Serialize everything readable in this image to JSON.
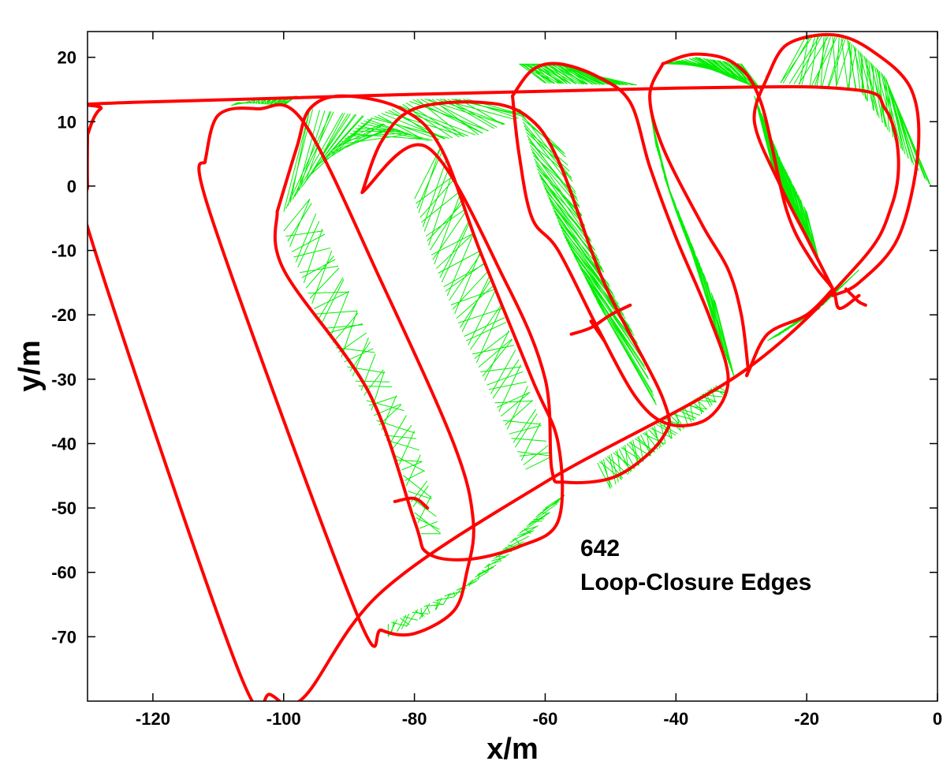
{
  "chart_data": {
    "type": "line",
    "title": "",
    "xlabel": "x/m",
    "ylabel": "y/m",
    "xlim": [
      -130,
      0
    ],
    "ylim": [
      -80,
      24
    ],
    "xticks": [
      -120,
      -100,
      -80,
      -60,
      -40,
      -20,
      0
    ],
    "yticks": [
      20,
      10,
      0,
      -10,
      -20,
      -30,
      -40,
      -50,
      -60,
      -70
    ],
    "grid": false,
    "annotation": {
      "count": "642",
      "label": "Loop-Closure Edges"
    },
    "colors": {
      "trajectory": "#ff0000",
      "loop_closure_edges": "#00ee00"
    },
    "series": [
      {
        "kind": "trajectory",
        "points": [
          [
            -130,
            8
          ],
          [
            -128,
            12
          ],
          [
            -123,
            13
          ],
          [
            -40,
            15.2
          ],
          [
            -13,
            15
          ],
          [
            -8,
            12
          ],
          [
            -6,
            5
          ],
          [
            -7,
            -3
          ],
          [
            -12,
            -12
          ],
          [
            -30,
            -29
          ],
          [
            -60,
            -46
          ],
          [
            -85,
            -63
          ],
          [
            -97,
            -79.5
          ],
          [
            -102,
            -79
          ],
          [
            -107,
            -75
          ],
          [
            -129.5,
            -8
          ],
          [
            -130,
            0
          ],
          [
            -130,
            8
          ]
        ]
      },
      {
        "kind": "trajectory",
        "points": [
          [
            -112,
            4
          ],
          [
            -110,
            11
          ],
          [
            -104,
            12
          ],
          [
            -97,
            10
          ],
          [
            -85,
            -15
          ],
          [
            -74,
            -40
          ],
          [
            -71,
            -52
          ],
          [
            -72,
            -60
          ],
          [
            -74,
            -66
          ],
          [
            -80,
            -69.5
          ],
          [
            -85,
            -69
          ],
          [
            -89,
            -66
          ],
          [
            -111,
            -5
          ],
          [
            -112,
            4
          ]
        ]
      },
      {
        "kind": "trajectory",
        "points": [
          [
            -101,
            -4
          ],
          [
            -98,
            6
          ],
          [
            -96,
            12
          ],
          [
            -91,
            14
          ],
          [
            -82,
            12
          ],
          [
            -76,
            6
          ],
          [
            -70,
            -10
          ],
          [
            -62,
            -30
          ],
          [
            -58,
            -40
          ],
          [
            -58,
            -52
          ],
          [
            -64,
            -56
          ],
          [
            -72,
            -58
          ],
          [
            -78,
            -57
          ],
          [
            -80,
            -52
          ],
          [
            -87,
            -32
          ],
          [
            -100,
            -13
          ],
          [
            -101,
            -4
          ]
        ]
      },
      {
        "kind": "trajectory",
        "points": [
          [
            -88,
            -1
          ],
          [
            -85,
            7
          ],
          [
            -80,
            12
          ],
          [
            -70,
            13
          ],
          [
            -63,
            11
          ],
          [
            -58,
            4
          ],
          [
            -51,
            -15
          ],
          [
            -42,
            -33
          ],
          [
            -42,
            -39
          ],
          [
            -49,
            -45
          ],
          [
            -57,
            -46
          ],
          [
            -59,
            -44
          ],
          [
            -60,
            -30
          ],
          [
            -66,
            -15
          ],
          [
            -78,
            6
          ],
          [
            -88,
            -1
          ]
        ]
      },
      {
        "kind": "trajectory",
        "points": [
          [
            -65,
            14
          ],
          [
            -62,
            18
          ],
          [
            -58,
            19
          ],
          [
            -52,
            17
          ],
          [
            -47,
            13
          ],
          [
            -44,
            3
          ],
          [
            -40,
            -8
          ],
          [
            -35,
            -20
          ],
          [
            -32,
            -30
          ],
          [
            -35,
            -36
          ],
          [
            -41,
            -37
          ],
          [
            -46,
            -33
          ],
          [
            -52,
            -22
          ],
          [
            -58,
            -10
          ],
          [
            -62,
            -5
          ],
          [
            -64,
            5
          ],
          [
            -65,
            14
          ]
        ]
      },
      {
        "kind": "trajectory",
        "points": [
          [
            -42,
            19
          ],
          [
            -37,
            20.5
          ],
          [
            -31,
            19
          ],
          [
            -27,
            13
          ],
          [
            -23,
            -4
          ],
          [
            -19,
            -12
          ],
          [
            -16,
            -16
          ],
          [
            -15,
            -19
          ],
          [
            -12,
            -17
          ]
        ]
      },
      {
        "kind": "trajectory",
        "points": [
          [
            -42,
            19
          ],
          [
            -44,
            14
          ],
          [
            -42,
            6
          ],
          [
            -36,
            -6
          ],
          [
            -32,
            -13
          ],
          [
            -30,
            -20
          ],
          [
            -29,
            -28
          ],
          [
            -29,
            -29
          ],
          [
            -26,
            -23
          ],
          [
            -20,
            -20
          ],
          [
            -16,
            -16
          ]
        ]
      },
      {
        "kind": "trajectory",
        "points": [
          [
            -26,
            17
          ],
          [
            -23,
            22
          ],
          [
            -16,
            23.5
          ],
          [
            -10,
            21
          ],
          [
            -4,
            15
          ],
          [
            -3,
            5
          ],
          [
            -6,
            -8
          ],
          [
            -12,
            -15
          ],
          [
            -16,
            -17
          ]
        ]
      },
      {
        "kind": "trajectory",
        "points": [
          [
            -26,
            17
          ],
          [
            -28,
            10
          ],
          [
            -24,
            0
          ],
          [
            -20,
            -8
          ],
          [
            -17,
            -14
          ],
          [
            -16,
            -16
          ]
        ]
      },
      {
        "kind": "trajectory",
        "points": [
          [
            -83,
            -49
          ],
          [
            -80,
            -48.5
          ],
          [
            -78,
            -50
          ]
        ]
      },
      {
        "kind": "trajectory",
        "points": [
          [
            -56,
            -23
          ],
          [
            -53,
            -22
          ],
          [
            -50,
            -20
          ],
          [
            -47,
            -18.5
          ]
        ]
      },
      {
        "kind": "trajectory",
        "points": [
          [
            -53,
            -21
          ],
          [
            -51,
            -24
          ]
        ]
      },
      {
        "kind": "trajectory",
        "points": [
          [
            -14,
            -16
          ],
          [
            -13,
            -17
          ],
          [
            -12,
            -18
          ],
          [
            -11,
            -18.5
          ]
        ]
      }
    ],
    "loop_closure_groups": [
      {
        "a": [
          [
            -100,
            -4
          ],
          [
            -95,
            3
          ],
          [
            -88,
            10
          ],
          [
            -80,
            13.5
          ],
          [
            -72,
            13.5
          ]
        ],
        "b": [
          [
            -96,
            12
          ],
          [
            -88,
            11
          ],
          [
            -78,
            7
          ],
          [
            -70,
            8
          ],
          [
            -63,
            11
          ]
        ]
      },
      {
        "a": [
          [
            -100,
            -7
          ],
          [
            -95,
            -20
          ],
          [
            -88,
            -32
          ],
          [
            -82,
            -44
          ],
          [
            -79,
            -54
          ]
        ],
        "b": [
          [
            -96,
            -2
          ],
          [
            -91,
            -14
          ],
          [
            -86,
            -26
          ],
          [
            -80,
            -38
          ],
          [
            -76,
            -54
          ]
        ]
      },
      {
        "a": [
          [
            -80,
            -2
          ],
          [
            -77,
            -12
          ],
          [
            -73,
            -22
          ],
          [
            -68,
            -33
          ],
          [
            -63,
            -44
          ]
        ],
        "b": [
          [
            -76,
            6
          ],
          [
            -72,
            -4
          ],
          [
            -67,
            -18
          ],
          [
            -63,
            -30
          ],
          [
            -59,
            -42
          ]
        ]
      },
      {
        "a": [
          [
            -64,
            12
          ],
          [
            -61,
            2
          ],
          [
            -57,
            -8
          ],
          [
            -52,
            -18
          ]
        ],
        "b": [
          [
            -57,
            5
          ],
          [
            -54,
            -6
          ],
          [
            -50,
            -16
          ],
          [
            -46,
            -24
          ],
          [
            -43,
            -34
          ]
        ]
      },
      {
        "a": [
          [
            -64,
            19
          ],
          [
            -58,
            19
          ],
          [
            -52,
            17
          ]
        ],
        "b": [
          [
            -60,
            16
          ],
          [
            -53,
            15.8
          ],
          [
            -46,
            15.7
          ]
        ]
      },
      {
        "a": [
          [
            -43,
            6
          ],
          [
            -40,
            -4
          ],
          [
            -37,
            -12
          ],
          [
            -34,
            -22
          ],
          [
            -31,
            -30
          ]
        ],
        "b": [
          [
            -44,
            12
          ],
          [
            -42,
            2
          ],
          [
            -38,
            -8
          ],
          [
            -34,
            -18
          ]
        ]
      },
      {
        "a": [
          [
            -36,
            19
          ],
          [
            -32,
            17
          ],
          [
            -27,
            15
          ]
        ],
        "b": [
          [
            -42,
            19
          ],
          [
            -37,
            20
          ],
          [
            -30,
            19
          ]
        ]
      },
      {
        "a": [
          [
            -25,
            2
          ],
          [
            -21,
            -6
          ],
          [
            -18,
            -12
          ]
        ],
        "b": [
          [
            -28,
            14
          ],
          [
            -24,
            4
          ],
          [
            -20,
            -4
          ]
        ]
      },
      {
        "a": [
          [
            -20,
            23.5
          ],
          [
            -14,
            23
          ],
          [
            -8,
            17
          ],
          [
            -6,
            12
          ]
        ],
        "b": [
          [
            -24,
            16
          ],
          [
            -18,
            15.5
          ],
          [
            -12,
            15
          ],
          [
            -5,
            5
          ],
          [
            -1,
            0
          ]
        ]
      },
      {
        "a": [
          [
            -107,
            13
          ],
          [
            -104,
            12.8
          ],
          [
            -100,
            12.5
          ]
        ],
        "b": [
          [
            -108,
            12.5
          ],
          [
            -104,
            13.5
          ],
          [
            -98,
            14
          ]
        ]
      },
      {
        "a": [
          [
            -84,
            -68
          ],
          [
            -78,
            -65
          ],
          [
            -72,
            -62
          ],
          [
            -66,
            -56
          ],
          [
            -60,
            -50
          ]
        ],
        "b": [
          [
            -84,
            -70
          ],
          [
            -77,
            -66
          ],
          [
            -70,
            -61
          ],
          [
            -63,
            -55
          ],
          [
            -57,
            -48
          ]
        ]
      },
      {
        "a": [
          [
            -52,
            -43
          ],
          [
            -46,
            -39
          ],
          [
            -40,
            -35
          ],
          [
            -34,
            -31
          ]
        ],
        "b": [
          [
            -50,
            -47
          ],
          [
            -44,
            -42
          ],
          [
            -38,
            -37
          ],
          [
            -32,
            -32
          ]
        ]
      },
      {
        "a": [
          [
            -26,
            -24
          ],
          [
            -20,
            -20
          ],
          [
            -14,
            -15
          ]
        ],
        "b": [
          [
            -24,
            -23
          ],
          [
            -18,
            -19
          ],
          [
            -12,
            -13
          ]
        ]
      }
    ]
  }
}
